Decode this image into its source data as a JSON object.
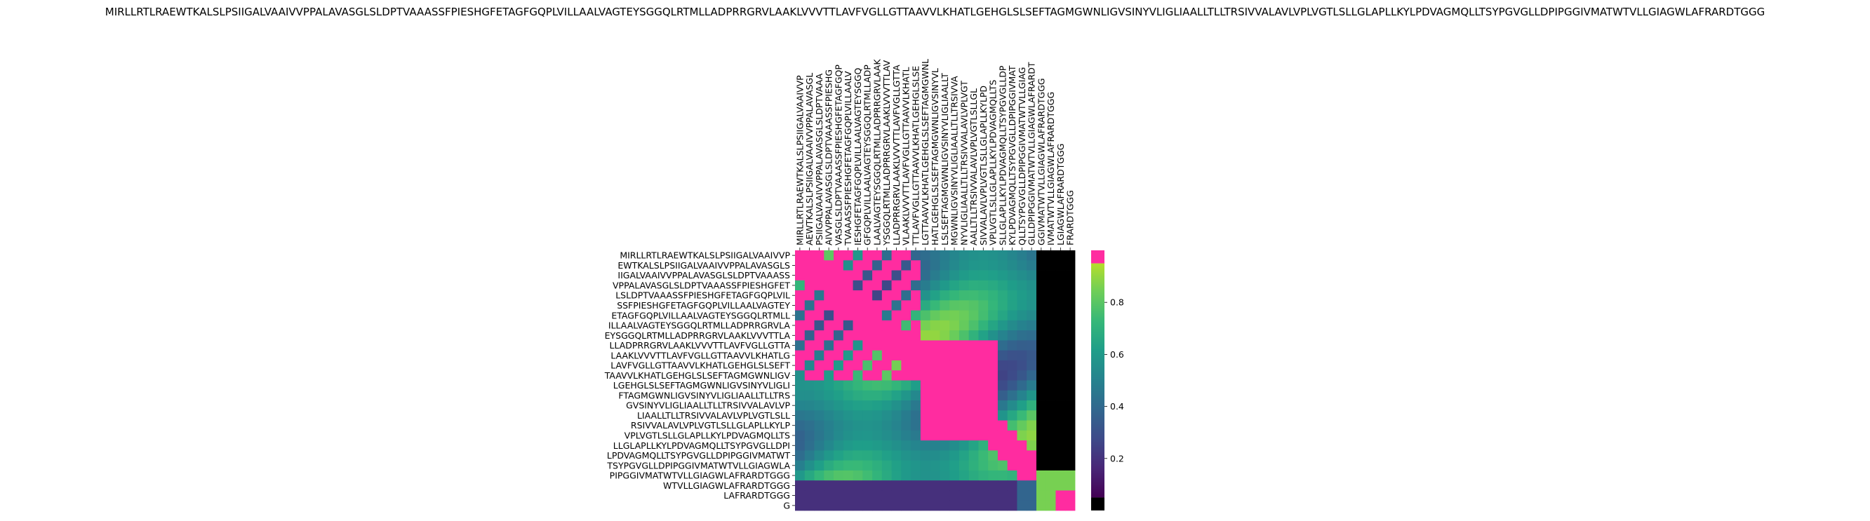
{
  "chart_data": {
    "type": "heatmap",
    "title": "MIRLLRTLRAEWTKALSLPSIIGALVAAIVVPPALAVASGLSLDPTVAAASSFPIESHGFETAGFGQPLVILLAALVAGTEYSGGQLRTMLLADPRRGRVLAAKLVVVTTLAVFVGLLGTTAAVVLKHATLGEHGLSLSEFTAGMGWNLIGVSINYVLIGLIAALLTLLTRSIVVALAVLVPLVGTLSLLGLAPLLKYLPDVAGMQLLTSYPGVGLLDPIPGGIVMATWTVLLGIAGWLAFRARDTGGG",
    "ylabels": [
      "MIRLLRTLRAEWTKALSLPSIIGALVAAIVVP",
      "EWTKALSLPSIIGALVAAIVVPPALAVASGLS",
      "IIGALVAAIVVPPALAVASGLSLDPTVAAASS",
      "VPPALAVASGLSLDPTVAAASSFPIESHGFET",
      "LSLDPTVAAASSFPIESHGFETAGFGQPLVIL",
      "SSFPIESHGFETAGFGQPLVILLAALVAGTEY",
      "ETAGFGQPLVILLAALVAGTEYSGGQLRTMLL",
      "ILLAALVAGTEYSGGQLRTMLLADPRRGRVLA",
      "EYSGGQLRTMLLADPRRGRVLAAKLVVVTTLA",
      "LLADPRRGRVLAAKLVVVTTLAVFVGLLGTTA",
      "LAAKLVVVTTLAVFVGLLGTTAAVVLKHATLG",
      "LAVFVGLLGTTAAVVLKHATLGEHGLSLSEFT",
      "TAAVVLKHATLGEHGLSLSEFTAGMGWNLIGV",
      "LGEHGLSLSEFTAGMGWNLIGVSINYVLIGLI",
      "FTAGMGWNLIGVSINYVLIGLIAALLTLLTRS",
      "GVSINYVLIGLIAALLTLLTRSIVVALAVLVP",
      "LIAALLTLLTRSIVVALAVLVPLVGTLSLL",
      "RSIVVALAVLVPLVGTLSLLGLAPLLKYLP",
      "VPLVGTLSLLGLAPLLKYLPDVAGMQLLTS",
      "LLGLAPLLKYLPDVAGMQLLTSYPGVGLLDPI",
      "LPDVAGMQLLTSYPGVGLLDPIPGGIVMATWT",
      "TSYPGVGLLDPIPGGIVMATWTVLLGIAGWLA",
      "PIPGGIVMATWTVLLGIAGWLAFRARDTGGG",
      "WTVLLGIAGWLAFRARDTGGG",
      "LAFRARDTGGG",
      "G"
    ],
    "xlabels": [
      "MIRLLRTLRAEWTKALSLPSIIGALVAAIVVP",
      "AEWTKALSLPSIIGALVAAIVVPPALAVASGL",
      "PSIIGALVAAIVVPPALAVASGLSLDPTVAAA",
      "AIVVPPALAVASGLSLDPTVAAASSFPIESHG",
      "VASGLSLDPTVAAASSFPIESHGFETAGFGQP",
      "TVAAASSFPIESHGFETAGFGQPLVILLAALV",
      "IESHGFETAGFGQPLVILLAALVAGTEYSGGQ",
      "GFGQPLVILLAALVAGTEYSGGQLRTMLLADP",
      "LAALVAGTEYSGGQLRTMLLADPRRGRVLAAK",
      "YSGGQLRTMLLADPRRGRVLAAKLVVVTTLAV",
      "LLADPRRGRVLAAKLVVVTTLAVFVGLLGTTA",
      "VLAAKLVVVTTLAVFVGLLGTTAAVVLKHATL",
      "TTLAVFVGLLGTTAAVVLKHATLGEHGLSLSE",
      "LGTTAAVVLKHATLGEHGLSLSEFTAGMGWNL",
      "HATLGEHGLSLSEFTAGMGWNLIGVSINYVL",
      "LSLSEFTAGMGWNLIGVSINYVLIGLIAALLT",
      "MGWNLIGVSINYVLIGLIAALLTLLTRSIVVA",
      "NYVLIGLIAALLTLLTRSIVVALAVLVPLVGT",
      "AALLTLLTRSIVVALAVLVPLVGTLSLLGL",
      "SIVVALAVLVPLVGTLSLLGLAPLLKYLPD",
      "VPLVGTLSLLGLAPLLKYLPDVAGMQLLTS",
      "SLLGLAPLLKYLPDVAGMQLLTSYPGVGLLDP",
      "KYLPDVAGMQLLTSYPGVGLLDPIPGGIVMAT",
      "QLLTSYPGVGLLDPIPGGIVMATWTVLLGIAG",
      "GLLDPIPGGIVMATWTVLLGIAGWLAFRARDT",
      "GGIVMATWTVLLGIAGWLAFRARDTGGG",
      "IVMATWTVLLGIAGWLAFRARDTGGG",
      "LGIAGWLAFRARDTGGG",
      "FRARDTGGG"
    ],
    "colorbar": {
      "ticks": [
        0.2,
        0.4,
        0.6,
        0.8
      ],
      "range": [
        0,
        1
      ],
      "top_color": "#ff2ca0",
      "bottom_color": "#000000",
      "colormap": "viridis"
    },
    "colors": {
      "high": "#ff2ca0",
      "low": "#000000"
    }
  }
}
